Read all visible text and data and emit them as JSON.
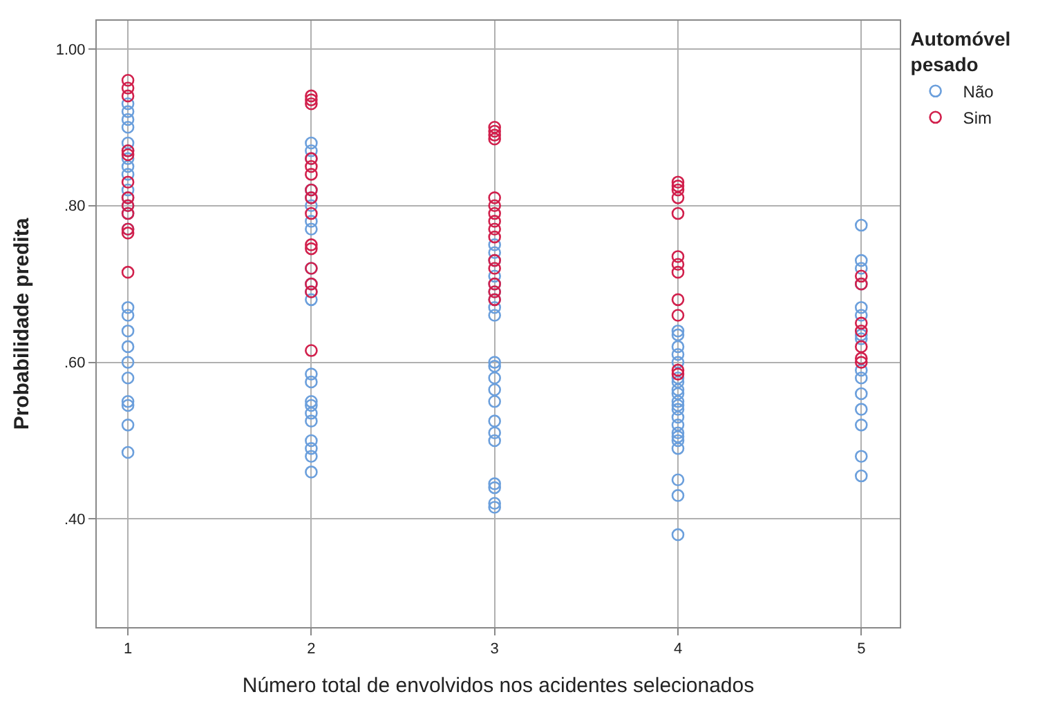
{
  "chart_data": {
    "type": "scatter",
    "xlabel": "Número total de envolvidos nos acidentes selecionados",
    "ylabel": "Probabilidade predita",
    "legend_title": "Automóvel pesado",
    "legend": "top right",
    "grid": true,
    "marker": "circle",
    "xlim": [
      0.83,
      5.21
    ],
    "xticks": [
      1,
      2,
      3,
      4,
      5
    ],
    "ylim": [
      0.262,
      1.036
    ],
    "yticks": [
      {
        "value": 0.4,
        "label": ".40"
      },
      {
        "value": 0.6,
        "label": ".60"
      },
      {
        "value": 0.8,
        "label": ".80"
      },
      {
        "value": 1.0,
        "label": "1.00"
      }
    ],
    "series": [
      {
        "name": "Não",
        "color": "#6b9fdc",
        "x": [
          1,
          1,
          1,
          1,
          1,
          1,
          1,
          1,
          1,
          1,
          1,
          1,
          1,
          1,
          1,
          1,
          1,
          1,
          1,
          1,
          1,
          1,
          1,
          1,
          2,
          2,
          2,
          2,
          2,
          2,
          2,
          2,
          2,
          2,
          2,
          2,
          2,
          2,
          2,
          2,
          2,
          2,
          2,
          2,
          2,
          2,
          3,
          3,
          3,
          3,
          3,
          3,
          3,
          3,
          3,
          3,
          3,
          3,
          3,
          3,
          3,
          3,
          3,
          3,
          3,
          3,
          3,
          4,
          4,
          4,
          4,
          4,
          4,
          4,
          4,
          4,
          4,
          4,
          4,
          4,
          4,
          4,
          4,
          4,
          4,
          4,
          4,
          4,
          5,
          5,
          5,
          5,
          5,
          5,
          5,
          5,
          5,
          5,
          5,
          5,
          5,
          5,
          5
        ],
        "values": [
          0.93,
          0.92,
          0.91,
          0.9,
          0.88,
          0.87,
          0.86,
          0.85,
          0.84,
          0.82,
          0.81,
          0.8,
          0.79,
          0.77,
          0.67,
          0.66,
          0.64,
          0.62,
          0.6,
          0.58,
          0.55,
          0.545,
          0.52,
          0.485,
          0.88,
          0.87,
          0.86,
          0.82,
          0.81,
          0.8,
          0.78,
          0.77,
          0.72,
          0.7,
          0.69,
          0.68,
          0.585,
          0.575,
          0.55,
          0.545,
          0.535,
          0.525,
          0.5,
          0.49,
          0.48,
          0.46,
          0.75,
          0.74,
          0.73,
          0.71,
          0.7,
          0.69,
          0.68,
          0.67,
          0.66,
          0.6,
          0.595,
          0.58,
          0.565,
          0.55,
          0.525,
          0.51,
          0.5,
          0.445,
          0.44,
          0.42,
          0.415,
          0.64,
          0.635,
          0.62,
          0.61,
          0.6,
          0.58,
          0.575,
          0.565,
          0.56,
          0.55,
          0.545,
          0.54,
          0.53,
          0.52,
          0.51,
          0.505,
          0.5,
          0.49,
          0.45,
          0.43,
          0.38,
          0.775,
          0.73,
          0.72,
          0.7,
          0.67,
          0.66,
          0.635,
          0.63,
          0.59,
          0.58,
          0.56,
          0.54,
          0.52,
          0.48,
          0.455
        ]
      },
      {
        "name": "Sim",
        "color": "#d1204c",
        "x": [
          1,
          1,
          1,
          1,
          1,
          1,
          1,
          1,
          1,
          1,
          1,
          1,
          2,
          2,
          2,
          2,
          2,
          2,
          2,
          2,
          2,
          2,
          2,
          2,
          2,
          2,
          2,
          3,
          3,
          3,
          3,
          3,
          3,
          3,
          3,
          3,
          3,
          3,
          3,
          3,
          3,
          3,
          4,
          4,
          4,
          4,
          4,
          4,
          4,
          4,
          4,
          4,
          4,
          4,
          5,
          5,
          5,
          5,
          5,
          5,
          5
        ],
        "values": [
          0.96,
          0.95,
          0.94,
          0.87,
          0.865,
          0.83,
          0.81,
          0.8,
          0.79,
          0.77,
          0.765,
          0.715,
          0.94,
          0.935,
          0.93,
          0.86,
          0.85,
          0.84,
          0.82,
          0.81,
          0.79,
          0.75,
          0.745,
          0.72,
          0.7,
          0.69,
          0.615,
          0.9,
          0.895,
          0.89,
          0.885,
          0.81,
          0.8,
          0.79,
          0.78,
          0.77,
          0.76,
          0.73,
          0.72,
          0.7,
          0.69,
          0.68,
          0.83,
          0.825,
          0.82,
          0.81,
          0.79,
          0.735,
          0.725,
          0.715,
          0.68,
          0.66,
          0.59,
          0.585,
          0.71,
          0.7,
          0.65,
          0.64,
          0.62,
          0.605,
          0.6
        ]
      }
    ]
  }
}
